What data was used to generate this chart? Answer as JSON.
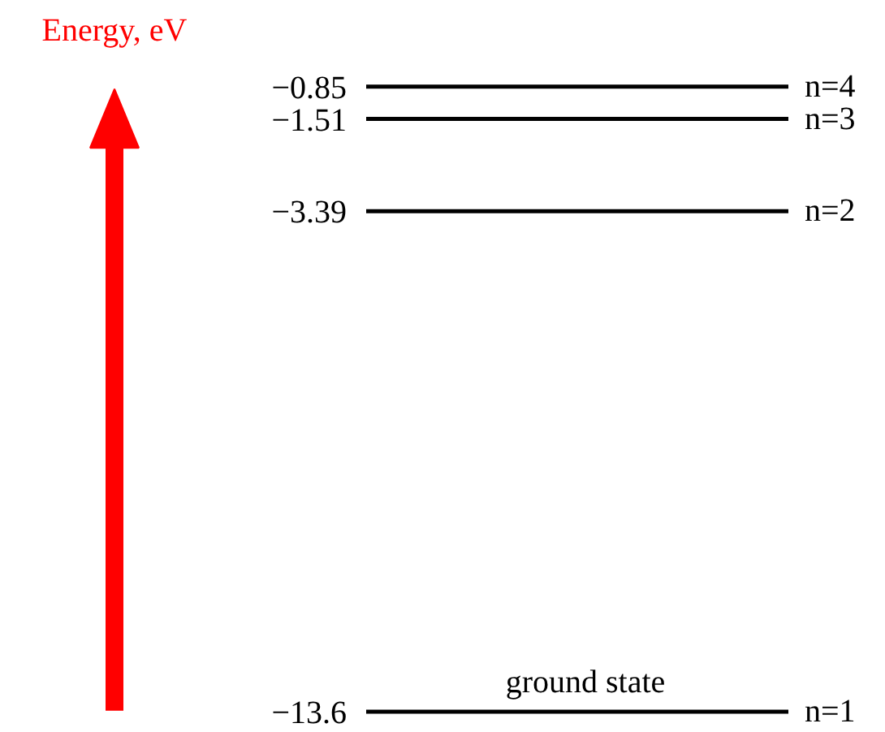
{
  "chart_data": {
    "type": "other",
    "ylabel": "Energy, eV",
    "categories": [
      "n=1",
      "n=2",
      "n=3",
      "n=4"
    ],
    "values": [
      -13.6,
      -3.39,
      -1.51,
      -0.85
    ],
    "value_labels": [
      "−13.6",
      "−3.39",
      "−1.51",
      "−0.85"
    ],
    "annotations": [
      "ground state"
    ]
  }
}
